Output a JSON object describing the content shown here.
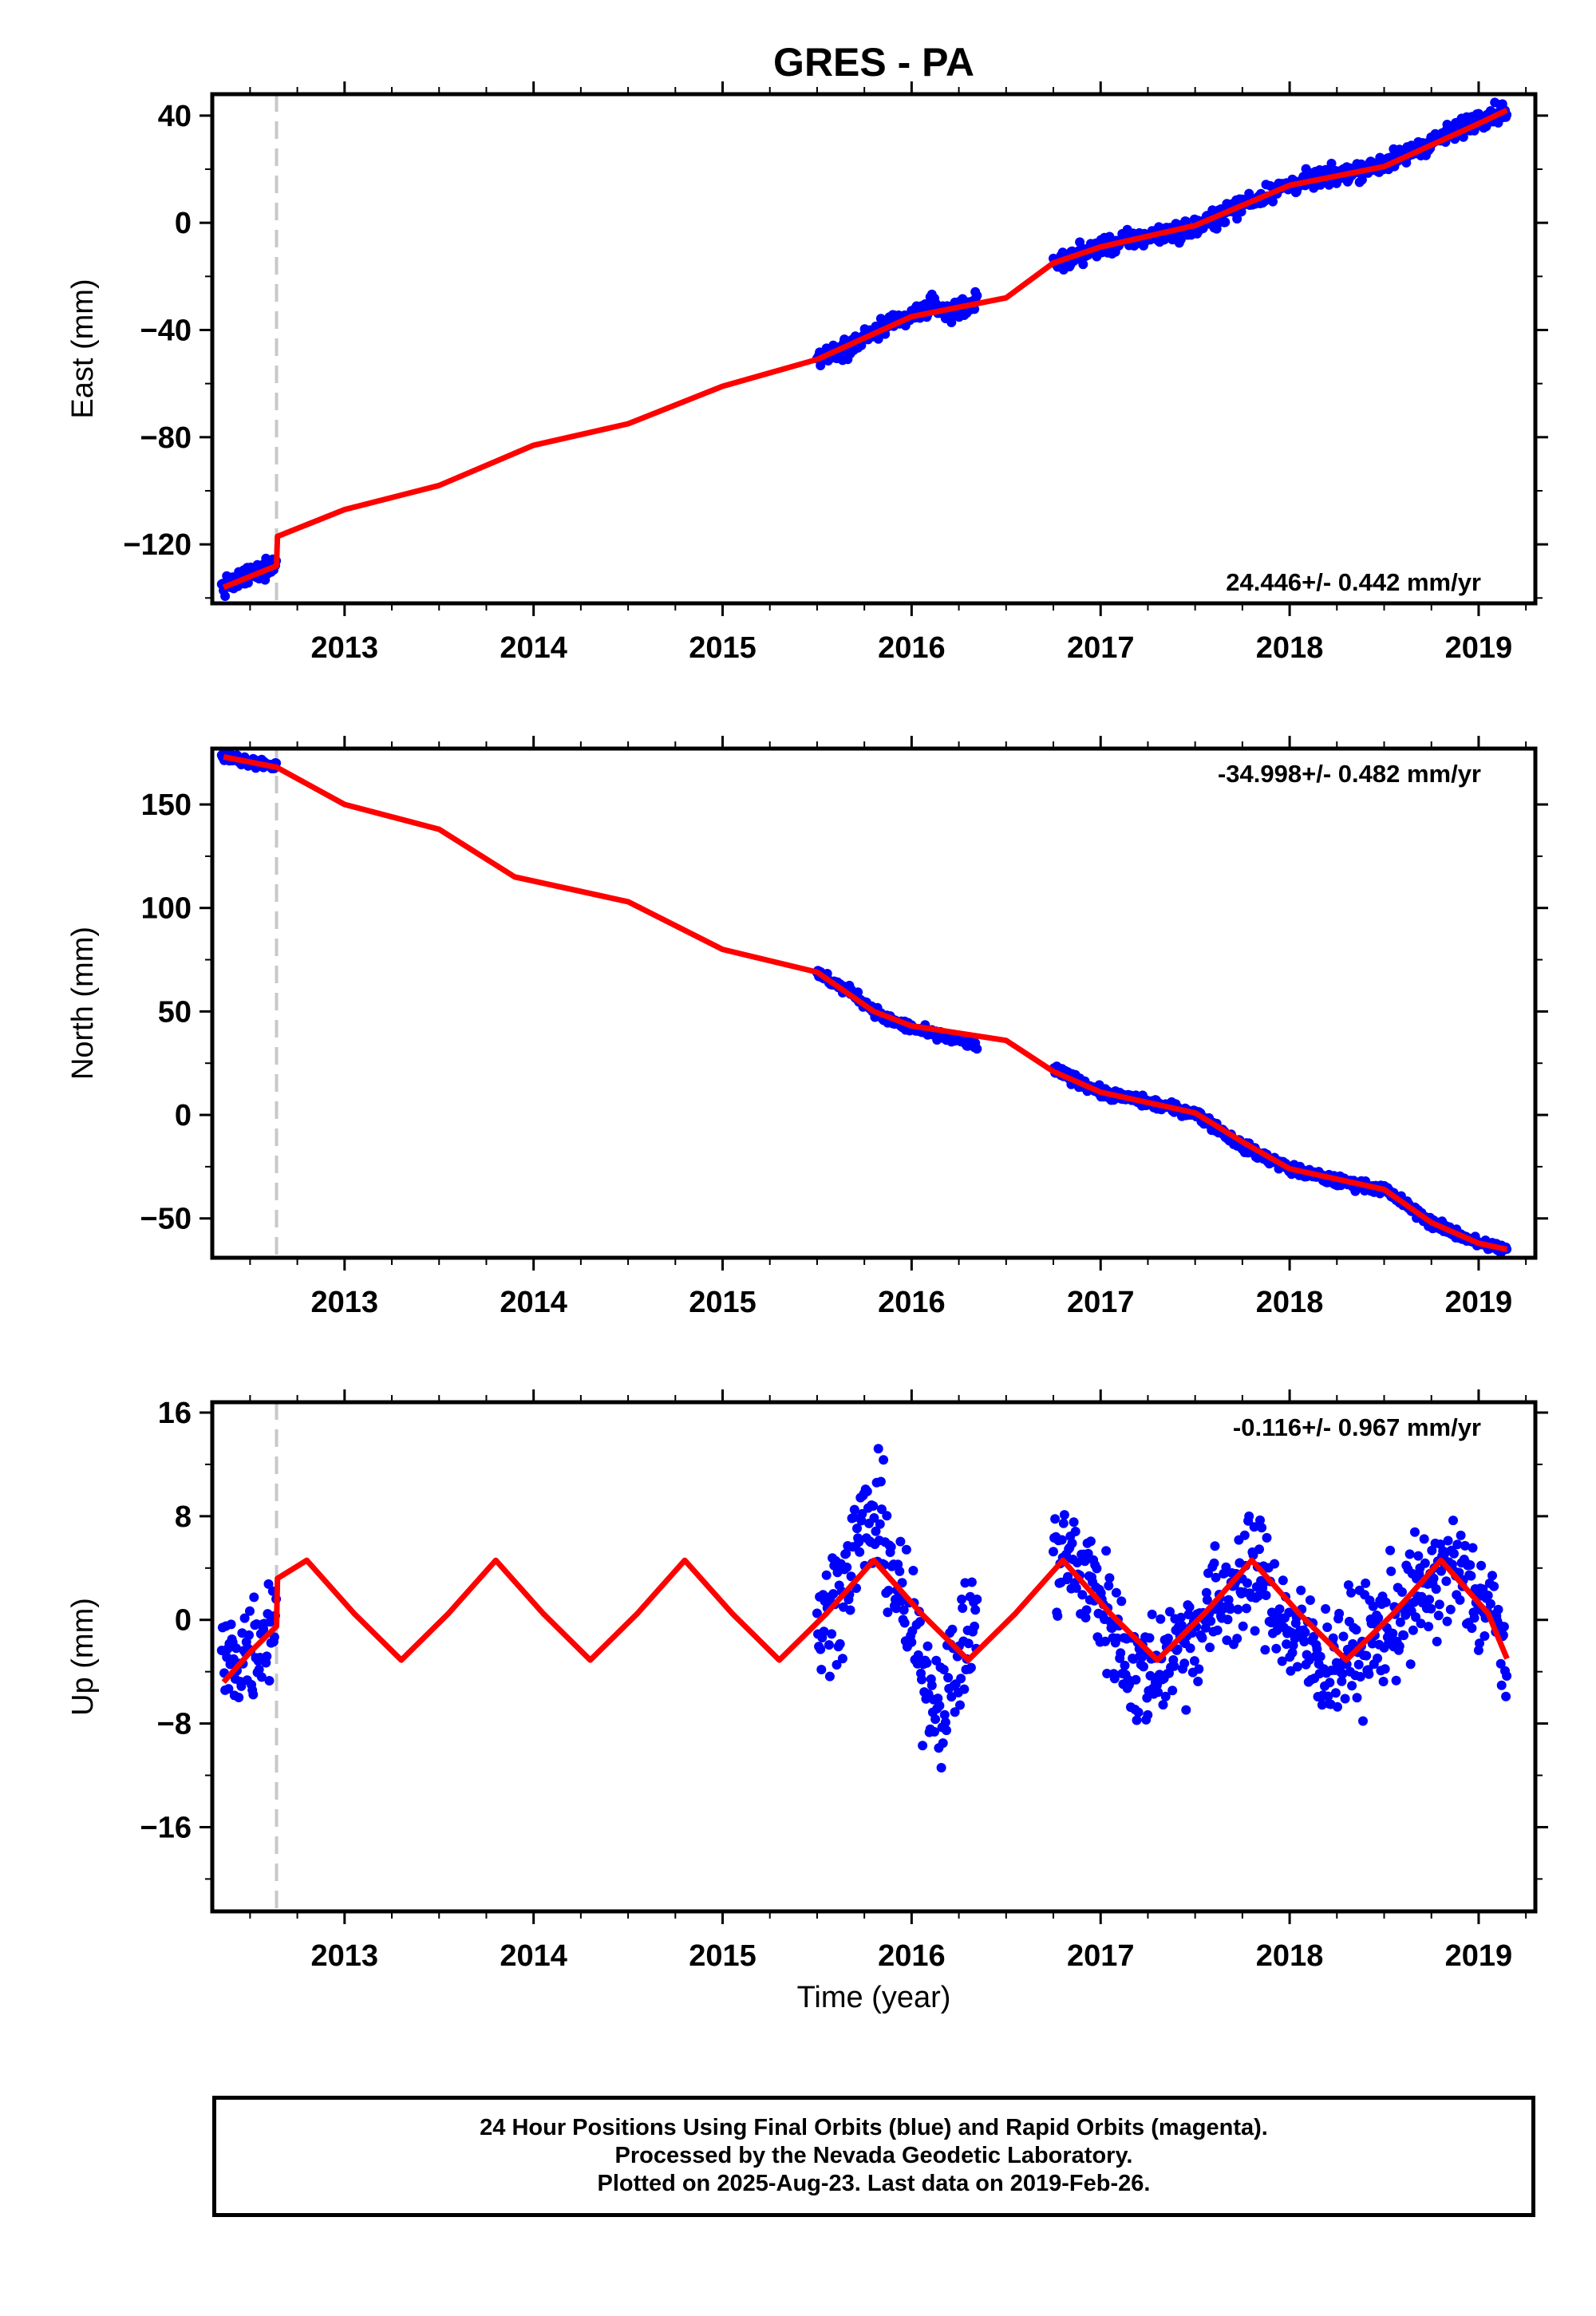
{
  "title": "GRES - PA",
  "xlabel": "Time (year)",
  "colors": {
    "final_orbits": "#0000ff",
    "model": "#ff0000",
    "offset_line": "#c8c8c8",
    "frame": "#000000"
  },
  "footer": {
    "line1": "24 Hour Positions Using Final Orbits (blue) and Rapid Orbits (magenta).",
    "line2": "Processed by the Nevada Geodetic Laboratory.",
    "line3": "Plotted on 2025-Aug-23. Last data on 2019-Feb-26."
  },
  "chart_data": [
    {
      "type": "scatter",
      "component": "East",
      "ylabel": "East (mm)",
      "xlim": [
        2012.3,
        2019.3
      ],
      "ylim": [
        -142,
        48
      ],
      "yticks": [
        -120,
        -80,
        -40,
        0,
        40
      ],
      "ytick_labels": [
        "−120",
        "−80",
        "−40",
        "0",
        "40"
      ],
      "xticks": [
        2013,
        2014,
        2015,
        2016,
        2017,
        2018,
        2019
      ],
      "rate_label": "24.446+/- 0.442 mm/yr",
      "rate_position": "bottom-right",
      "offset_epoch": 2012.64,
      "data_segments": [
        [
          2012.35,
          2012.64
        ],
        [
          2015.5,
          2016.35
        ],
        [
          2016.75,
          2019.15
        ]
      ],
      "series": [
        {
          "name": "Final Orbits",
          "style": "points",
          "x": [
            2012.36,
            2012.45,
            2012.55,
            2012.63,
            2015.55,
            2015.7,
            2015.85,
            2016.0,
            2016.1,
            2016.2,
            2016.3,
            2016.8,
            2017.0,
            2017.25,
            2017.5,
            2017.75,
            2018.0,
            2018.25,
            2018.5,
            2018.75,
            2019.0,
            2019.15
          ],
          "y": [
            -136,
            -133,
            -130,
            -127,
            -49,
            -45,
            -39,
            -35,
            -31,
            -33,
            -31,
            -14,
            -9,
            -5,
            -2,
            7,
            14,
            18,
            22,
            30,
            39,
            42
          ],
          "noise_mm": 2.5
        },
        {
          "name": "Model",
          "style": "line",
          "x": [
            2012.36,
            2012.64,
            2012.645,
            2013.0,
            2013.5,
            2014.0,
            2014.5,
            2015.0,
            2015.5,
            2016.0,
            2016.5,
            2016.75,
            2017.0,
            2017.5,
            2018.0,
            2018.5,
            2019.0,
            2019.15
          ],
          "y": [
            -136,
            -128,
            -117,
            -107,
            -98,
            -83,
            -75,
            -61,
            -51,
            -35,
            -28,
            -15,
            -9,
            -1,
            14,
            21,
            37,
            42
          ]
        }
      ]
    },
    {
      "type": "scatter",
      "component": "North",
      "ylabel": "North (mm)",
      "xlim": [
        2012.3,
        2019.3
      ],
      "ylim": [
        -69,
        177
      ],
      "yticks": [
        -50,
        0,
        50,
        100,
        150
      ],
      "ytick_labels": [
        "−50",
        "0",
        "50",
        "100",
        "150"
      ],
      "xticks": [
        2013,
        2014,
        2015,
        2016,
        2017,
        2018,
        2019
      ],
      "rate_label": "-34.998+/- 0.482 mm/yr",
      "rate_position": "top-right",
      "offset_epoch": 2012.64,
      "data_segments": [
        [
          2012.35,
          2012.64
        ],
        [
          2015.5,
          2016.35
        ],
        [
          2016.75,
          2019.15
        ]
      ],
      "series": [
        {
          "name": "Final Orbits",
          "style": "points",
          "x": [
            2012.36,
            2012.5,
            2012.63,
            2015.55,
            2015.7,
            2015.85,
            2016.0,
            2016.15,
            2016.3,
            2016.8,
            2017.0,
            2017.25,
            2017.5,
            2017.75,
            2018.0,
            2018.25,
            2018.5,
            2018.75,
            2019.0,
            2019.15
          ],
          "y": [
            173,
            171,
            169,
            66,
            58,
            47,
            42,
            38,
            35,
            20,
            11,
            6,
            1,
            -15,
            -26,
            -32,
            -36,
            -52,
            -62,
            -65
          ],
          "noise_mm": 1.8
        },
        {
          "name": "Model",
          "style": "line",
          "x": [
            2012.36,
            2012.64,
            2013.0,
            2013.5,
            2013.9,
            2014.5,
            2015.0,
            2015.5,
            2015.8,
            2016.0,
            2016.5,
            2016.75,
            2017.0,
            2017.5,
            2017.75,
            2018.0,
            2018.5,
            2018.75,
            2019.0,
            2019.15
          ],
          "y": [
            173,
            168,
            150,
            138,
            115,
            103,
            80,
            69,
            50,
            43,
            36,
            21,
            11,
            1,
            -13,
            -26,
            -36,
            -52,
            -62,
            -65
          ]
        }
      ]
    },
    {
      "type": "scatter",
      "component": "Up",
      "ylabel": "Up (mm)",
      "xlim": [
        2012.3,
        2019.3
      ],
      "ylim": [
        -22.5,
        16.8
      ],
      "yticks": [
        -16,
        -8,
        0,
        8,
        16
      ],
      "ytick_labels": [
        "−16",
        "−8",
        "0",
        "8",
        "16"
      ],
      "xticks": [
        2013,
        2014,
        2015,
        2016,
        2017,
        2018,
        2019
      ],
      "rate_label": "-0.116+/- 0.967 mm/yr",
      "rate_position": "top-right",
      "offset_epoch": 2012.64,
      "data_segments": [
        [
          2012.35,
          2012.64
        ],
        [
          2015.5,
          2016.35
        ],
        [
          2016.75,
          2019.15
        ]
      ],
      "series": [
        {
          "name": "Final Orbits",
          "style": "points",
          "x": [
            2012.36,
            2012.45,
            2012.55,
            2012.63,
            2015.55,
            2015.65,
            2015.75,
            2015.85,
            2015.95,
            2016.05,
            2016.15,
            2016.25,
            2016.35,
            2016.8,
            2016.95,
            2017.2,
            2017.45,
            2017.7,
            2017.85,
            2018.0,
            2018.2,
            2018.45,
            2018.65,
            2018.85,
            2019.05,
            2019.15
          ],
          "y": [
            -3.5,
            -2.5,
            -1.5,
            0.5,
            0,
            3.5,
            7.5,
            7,
            1,
            -3.5,
            -6.5,
            -3,
            0.5,
            5,
            3,
            -4.5,
            -1.5,
            2.5,
            3.5,
            -1,
            -3.5,
            -1.5,
            1.5,
            4,
            1,
            -2.5
          ],
          "noise_mm": 3.2
        },
        {
          "name": "Model",
          "style": "line",
          "x": [
            2012.36,
            2012.5,
            2012.64,
            2012.645,
            2012.8,
            2013.05,
            2013.3,
            2013.55,
            2013.8,
            2014.05,
            2014.3,
            2014.55,
            2014.8,
            2015.05,
            2015.3,
            2015.55,
            2015.8,
            2016.05,
            2016.3,
            2016.55,
            2016.8,
            2017.05,
            2017.3,
            2017.55,
            2017.8,
            2018.05,
            2018.3,
            2018.55,
            2018.8,
            2019.05,
            2019.15
          ],
          "y": [
            -4.8,
            -2.5,
            -0.5,
            3.2,
            4.6,
            0.5,
            -3.1,
            0.5,
            4.6,
            0.5,
            -3.1,
            0.5,
            4.6,
            0.5,
            -3.1,
            0.5,
            4.6,
            0.5,
            -3.1,
            0.5,
            4.6,
            0.5,
            -3.1,
            0.5,
            4.6,
            0.5,
            -3.1,
            0.5,
            4.6,
            0.5,
            -3.0
          ]
        }
      ]
    }
  ]
}
